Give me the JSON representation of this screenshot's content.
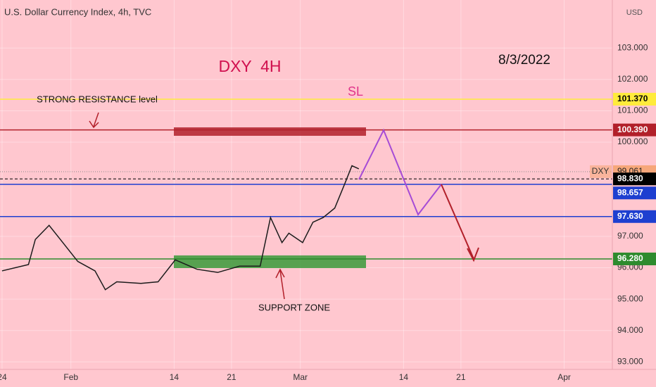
{
  "chart_data": {
    "type": "line",
    "title": "U.S. Dollar Currency Index, 4h, TVC",
    "currency": "USD",
    "heading": "DXY  4H",
    "date_note": "8/3/2022",
    "sl_note": "SL",
    "resistance_note": "STRONG RESISTANCE level",
    "support_note": "SUPPORT ZONE",
    "background": "#ffc7cf",
    "grid": true,
    "xlim": [
      -0.18,
      53.2
    ],
    "ylim": [
      92.76,
      104.53
    ],
    "xticks": [
      {
        "value": 0,
        "label": "24"
      },
      {
        "value": 6,
        "label": "Feb"
      },
      {
        "value": 15,
        "label": "14"
      },
      {
        "value": 20,
        "label": "21"
      },
      {
        "value": 26,
        "label": "Mar"
      },
      {
        "value": 35,
        "label": "14"
      },
      {
        "value": 40,
        "label": "21"
      },
      {
        "value": 49,
        "label": "Apr"
      }
    ],
    "yticks": [
      {
        "value": 103,
        "label": "103.000"
      },
      {
        "value": 102,
        "label": "102.000"
      },
      {
        "value": 101,
        "label": "101.000"
      },
      {
        "value": 100,
        "label": "100.000"
      },
      {
        "value": 97,
        "label": "97.000"
      },
      {
        "value": 96,
        "label": "96.000"
      },
      {
        "value": 95,
        "label": "95.000"
      },
      {
        "value": 94,
        "label": "94.000"
      },
      {
        "value": 93,
        "label": "93.000"
      }
    ],
    "series": [
      {
        "name": "DXY",
        "color": "#1b1b1b",
        "x": [
          0,
          2.3,
          2.9,
          4.1,
          5.3,
          6.6,
          8.1,
          9.0,
          10,
          12.1,
          13.6,
          15.1,
          17,
          18.8,
          20.7,
          22.5,
          23.4,
          24.4,
          25,
          26.2,
          27.1,
          28,
          29,
          29.9,
          30.5,
          31.1
        ],
        "values": [
          95.9,
          96.1,
          96.9,
          97.35,
          96.8,
          96.2,
          95.9,
          95.3,
          95.55,
          95.5,
          95.55,
          96.25,
          95.95,
          95.85,
          96.05,
          96.05,
          97.6,
          96.8,
          97.1,
          96.8,
          97.45,
          97.6,
          97.9,
          98.7,
          99.25,
          99.15
        ],
        "last": 99.061,
        "last_label": "99.061",
        "last_color": "#f6a77a"
      }
    ],
    "levels": [
      {
        "value": 101.37,
        "label": "101.370",
        "color": "#ffeb3b",
        "text_color": "#000000",
        "style": "solid"
      },
      {
        "value": 100.39,
        "label": "100.390",
        "color": "#b2202a",
        "text_color": "#ffffff",
        "style": "solid"
      },
      {
        "value": 98.83,
        "label": "98.830",
        "color": "#000000",
        "text_color": "#ffffff",
        "style": "dashed"
      },
      {
        "value": 98.657,
        "label": "98.657",
        "color": "#1e3fd0",
        "text_color": "#ffffff",
        "style": "solid"
      },
      {
        "value": 97.63,
        "label": "97.630",
        "color": "#1e3fd0",
        "text_color": "#ffffff",
        "style": "solid"
      },
      {
        "value": 96.28,
        "label": "96.280",
        "color": "#2e8b2e",
        "text_color": "#ffffff",
        "style": "solid"
      }
    ]
  }
}
